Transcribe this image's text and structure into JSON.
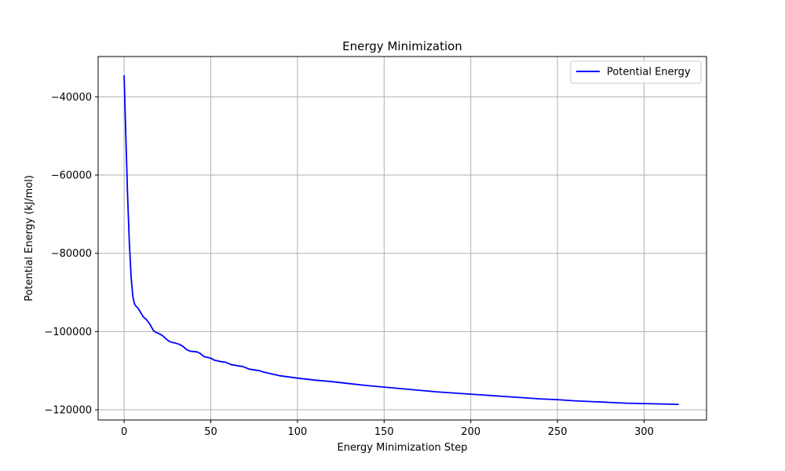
{
  "chart_data": {
    "type": "line",
    "title": "Energy Minimization",
    "xlabel": "Energy Minimization Step",
    "ylabel": "Potential Energy (kJ/mol)",
    "xlim": [
      -15,
      336
    ],
    "ylim": [
      -122600,
      -29700
    ],
    "xticks": [
      0,
      50,
      100,
      150,
      200,
      250,
      300
    ],
    "yticks": [
      -40000,
      -60000,
      -80000,
      -100000,
      -120000
    ],
    "xtick_labels": [
      "0",
      "50",
      "100",
      "150",
      "200",
      "250",
      "300"
    ],
    "ytick_labels": [
      "−40000",
      "−60000",
      "−80000",
      "−100000",
      "−120000"
    ],
    "grid": true,
    "legend_position": "top-right",
    "series": [
      {
        "name": "Potential Energy",
        "color": "#0000ff",
        "x": [
          0,
          1,
          2,
          3,
          4,
          5,
          6,
          7,
          8,
          9,
          10,
          11,
          12,
          13,
          14,
          15,
          16,
          17,
          18,
          20,
          22,
          24,
          26,
          28,
          30,
          32,
          34,
          36,
          38,
          40,
          42,
          44,
          46,
          48,
          50,
          52,
          54,
          56,
          58,
          60,
          62,
          64,
          66,
          68,
          70,
          72,
          75,
          78,
          80,
          85,
          90,
          95,
          100,
          110,
          120,
          130,
          140,
          150,
          160,
          170,
          180,
          190,
          200,
          210,
          220,
          230,
          240,
          250,
          260,
          270,
          280,
          290,
          300,
          310,
          320
        ],
        "y": [
          -34500,
          -50000,
          -65000,
          -77000,
          -86000,
          -91000,
          -93000,
          -93600,
          -94000,
          -94700,
          -95500,
          -96200,
          -96600,
          -97000,
          -97600,
          -98200,
          -99000,
          -99800,
          -100100,
          -100500,
          -101000,
          -101800,
          -102500,
          -102800,
          -103000,
          -103300,
          -103800,
          -104600,
          -105000,
          -105100,
          -105200,
          -105600,
          -106400,
          -106600,
          -106800,
          -107300,
          -107500,
          -107700,
          -107800,
          -108100,
          -108500,
          -108600,
          -108800,
          -108900,
          -109200,
          -109600,
          -109800,
          -110000,
          -110300,
          -110800,
          -111300,
          -111600,
          -111900,
          -112400,
          -112800,
          -113300,
          -113800,
          -114200,
          -114600,
          -115000,
          -115400,
          -115700,
          -116000,
          -116300,
          -116600,
          -116900,
          -117200,
          -117400,
          -117700,
          -117900,
          -118100,
          -118300,
          -118400,
          -118500,
          -118600
        ]
      }
    ]
  }
}
